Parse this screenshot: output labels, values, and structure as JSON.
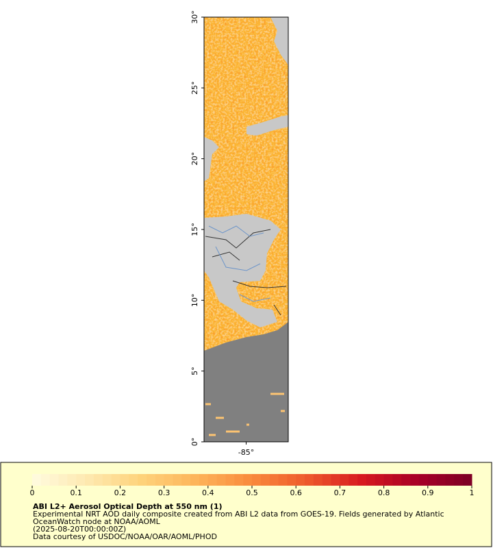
{
  "map": {
    "x_axis": {
      "lim": [
        -88,
        -82
      ],
      "ticks": [
        {
          "value": -85,
          "label": "-85°"
        }
      ]
    },
    "y_axis": {
      "lim": [
        0,
        30
      ],
      "ticks": [
        {
          "value": 0,
          "label": "0°"
        },
        {
          "value": 5,
          "label": "5°"
        },
        {
          "value": 10,
          "label": "10°"
        },
        {
          "value": 15,
          "label": "15°"
        },
        {
          "value": 20,
          "label": "20°"
        },
        {
          "value": 25,
          "label": "25°"
        },
        {
          "value": 30,
          "label": "30°"
        }
      ]
    }
  },
  "colorbar": {
    "lim": [
      0,
      1
    ],
    "ticks": [
      0,
      0.1,
      0.2,
      0.3,
      0.4,
      0.5,
      0.6,
      0.7,
      0.8,
      0.9,
      1
    ],
    "colors": [
      "#fffbe0",
      "#fee9b0",
      "#fed27a",
      "#fdb45a",
      "#f98a3c",
      "#ee5a2c",
      "#d7191f",
      "#a80026",
      "#7d0025"
    ]
  },
  "caption": {
    "title": "ABI L2+ Aerosol Optical Depth at 550 nm (1)",
    "lines": [
      "Experimental NRT AOD daily composite created from ABI L2 data from GOES-19. Fields generated by Atlantic",
      "OceanWatch node at NOAA/AOML",
      "(2025-08-20T00:00:00Z)",
      "Data courtesy of USDOC/NOAA/OAR/AOML/PHOD"
    ]
  }
}
